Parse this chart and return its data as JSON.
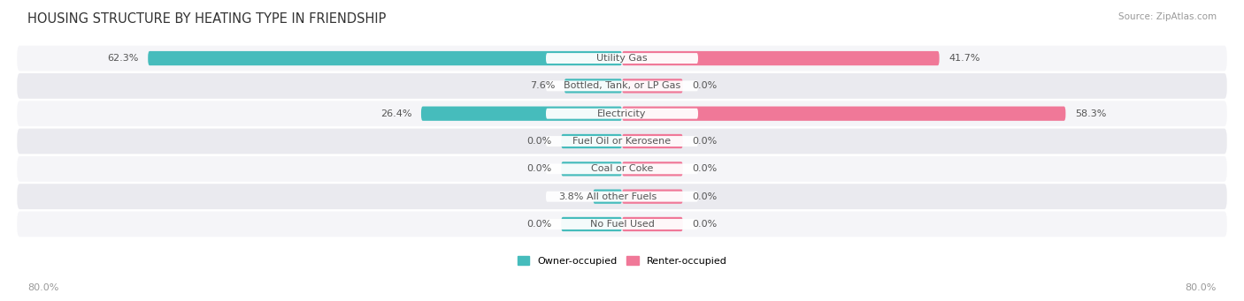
{
  "title": "HOUSING STRUCTURE BY HEATING TYPE IN FRIENDSHIP",
  "source": "Source: ZipAtlas.com",
  "categories": [
    "Utility Gas",
    "Bottled, Tank, or LP Gas",
    "Electricity",
    "Fuel Oil or Kerosene",
    "Coal or Coke",
    "All other Fuels",
    "No Fuel Used"
  ],
  "owner_values": [
    62.3,
    7.6,
    26.4,
    0.0,
    0.0,
    3.8,
    0.0
  ],
  "renter_values": [
    41.7,
    0.0,
    58.3,
    0.0,
    0.0,
    0.0,
    0.0
  ],
  "owner_color": "#46BCBC",
  "renter_color": "#F07898",
  "row_bg_color_light": "#F5F5F8",
  "row_bg_color_dark": "#EAEAEF",
  "axis_max": 80.0,
  "min_bar_display": 8.0,
  "x_left_label": "80.0%",
  "x_right_label": "80.0%",
  "title_fontsize": 10.5,
  "source_fontsize": 7.5,
  "label_fontsize": 8,
  "category_fontsize": 8
}
